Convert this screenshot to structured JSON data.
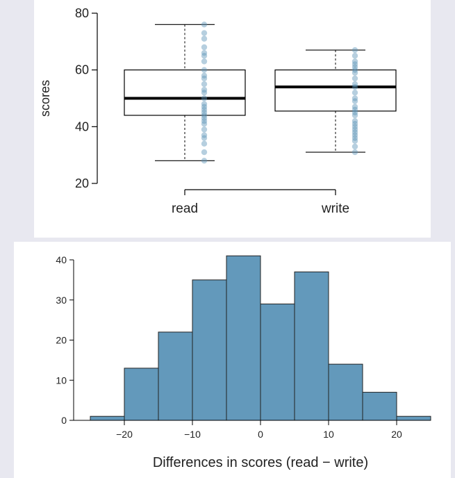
{
  "chart_data": [
    {
      "type": "boxplot",
      "ylabel": "scores",
      "ylim": [
        20,
        80
      ],
      "yticks": [
        20,
        40,
        60,
        80
      ],
      "categories": [
        "read",
        "write"
      ],
      "boxes": [
        {
          "name": "read",
          "whisker_low": 28,
          "q1": 44,
          "median": 50,
          "q3": 60,
          "whisker_high": 76,
          "points": [
            28,
            31,
            34,
            36,
            37,
            39,
            41,
            42,
            43,
            44,
            45,
            46,
            47,
            48,
            50,
            52,
            53,
            55,
            57,
            58,
            60,
            63,
            65,
            66,
            68,
            71,
            73,
            76
          ]
        },
        {
          "name": "write",
          "whisker_low": 31,
          "q1": 45.5,
          "median": 54,
          "q3": 60,
          "whisker_high": 67,
          "points": [
            31,
            33,
            35,
            36,
            37,
            38,
            39,
            40,
            41,
            42,
            44,
            45,
            46,
            47,
            49,
            50,
            52,
            54,
            55,
            57,
            59,
            60,
            61,
            62,
            63,
            65,
            67
          ]
        }
      ]
    },
    {
      "type": "histogram",
      "xlabel": "Differences in scores (read − write)",
      "xlim": [
        -25,
        25
      ],
      "ylim": [
        0,
        40
      ],
      "xticks": [
        -20,
        -10,
        0,
        10,
        20
      ],
      "xtick_labels": [
        "−20",
        "−10",
        "0",
        "10",
        "20"
      ],
      "yticks": [
        0,
        10,
        20,
        30,
        40
      ],
      "bins": [
        {
          "start": -25,
          "end": -20,
          "count": 1
        },
        {
          "start": -20,
          "end": -15,
          "count": 13
        },
        {
          "start": -15,
          "end": -10,
          "count": 22
        },
        {
          "start": -10,
          "end": -5,
          "count": 35
        },
        {
          "start": -5,
          "end": 0,
          "count": 41
        },
        {
          "start": 0,
          "end": 5,
          "count": 29
        },
        {
          "start": 5,
          "end": 10,
          "count": 37
        },
        {
          "start": 10,
          "end": 15,
          "count": 14
        },
        {
          "start": 15,
          "end": 20,
          "count": 7
        },
        {
          "start": 20,
          "end": 25,
          "count": 1
        }
      ]
    }
  ],
  "colors": {
    "bar": "#6399bb",
    "dot": "#5d95b7",
    "line": "#000000"
  }
}
